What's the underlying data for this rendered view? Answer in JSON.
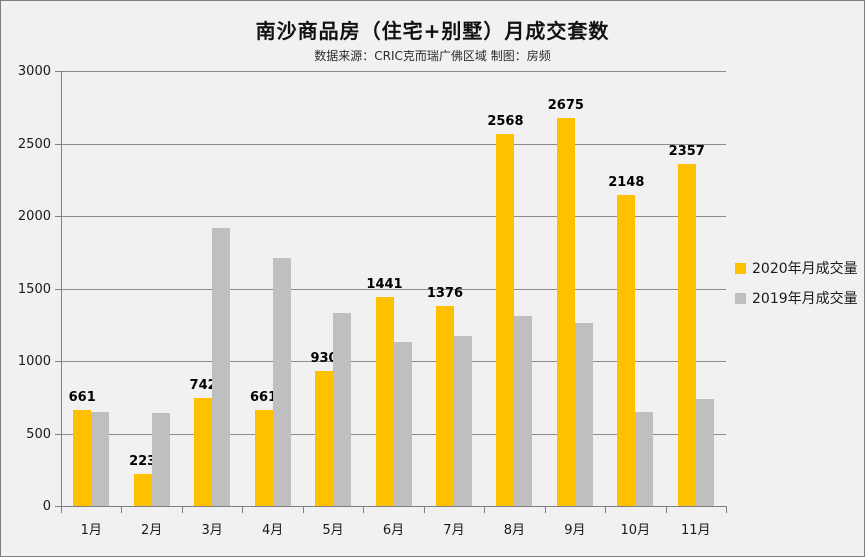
{
  "title": "南沙商品房（住宅+别墅）月成交套数",
  "subtitle": "数据来源：CRIC克而瑞广佛区域 制图：房频",
  "colors": {
    "background": "#f1f1f1",
    "series_2020": "#FFC000",
    "series_2019": "#BFBFBF",
    "gridline": "#8c8c8c",
    "axis": "#7f7f7f",
    "text": "#1a1a1a"
  },
  "chart_data": {
    "type": "bar",
    "title": "南沙商品房（住宅+别墅）月成交套数",
    "subtitle": "数据来源：CRIC克而瑞广佛区域 制图：房频",
    "categories": [
      "1月",
      "2月",
      "3月",
      "4月",
      "5月",
      "6月",
      "7月",
      "8月",
      "9月",
      "10月",
      "11月"
    ],
    "series": [
      {
        "name": "2020年月成交量",
        "color": "#FFC000",
        "values": [
          661,
          223,
          742,
          661,
          930,
          1441,
          1376,
          2568,
          2675,
          2148,
          2357
        ],
        "data_labels": true
      },
      {
        "name": "2019年月成交量",
        "color": "#BFBFBF",
        "values": [
          645,
          640,
          1920,
          1710,
          1330,
          1130,
          1170,
          1310,
          1265,
          650,
          740
        ],
        "data_labels": false
      }
    ],
    "xlabel": "",
    "ylabel": "",
    "ylim": [
      0,
      3000
    ],
    "yticks": [
      0,
      500,
      1000,
      1500,
      2000,
      2500,
      3000
    ],
    "grid": true,
    "legend_position": "right"
  }
}
